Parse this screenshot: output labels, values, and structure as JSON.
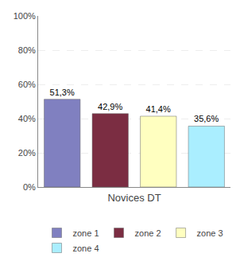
{
  "chart_data": {
    "type": "bar",
    "categories": [
      "zone 1",
      "zone 2",
      "zone 3",
      "zone 4"
    ],
    "values": [
      51.3,
      42.9,
      41.4,
      35.6
    ],
    "value_labels": [
      "51,3%",
      "42,9%",
      "41,4%",
      "35,6%"
    ],
    "colors": [
      "#8080C0",
      "#7B2D42",
      "#FFFFC0",
      "#AAEEFF"
    ],
    "xlabel": "Novices DT",
    "ylim": [
      0,
      100
    ],
    "yticks": [
      {
        "value": 0,
        "label": "0%"
      },
      {
        "value": 20,
        "label": "20%"
      },
      {
        "value": 40,
        "label": "40%"
      },
      {
        "value": 60,
        "label": "60%"
      },
      {
        "value": 80,
        "label": "80%"
      },
      {
        "value": 100,
        "label": "100%"
      }
    ],
    "grid": true,
    "data_labels": true,
    "tick_labels": "y",
    "legend": "bottom"
  }
}
